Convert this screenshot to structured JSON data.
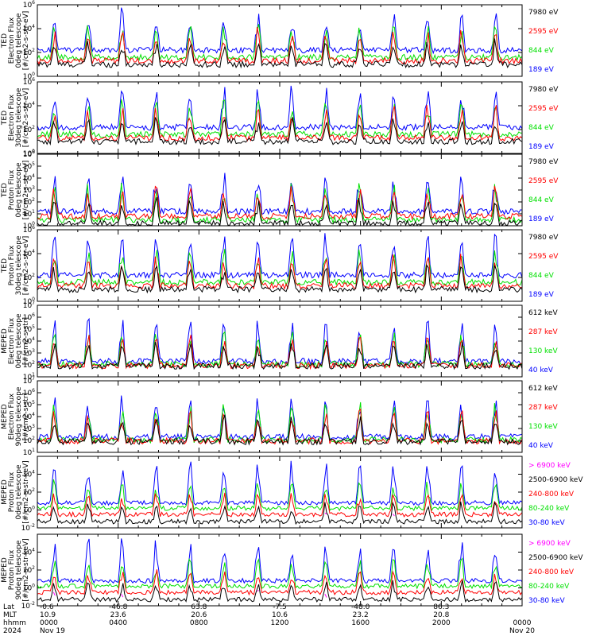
{
  "chart_data": [
    {
      "type": "line",
      "ylabel_lines": [
        "TED",
        "Electron Flux",
        "0deg telescope",
        "[#/cm2-s-str-eV]"
      ],
      "y_log_range": [
        0,
        6
      ],
      "y_ticks": [
        "10^0",
        "10^2",
        "10^4",
        "10^6"
      ],
      "series": [
        {
          "name": "7980 eV",
          "color": "#000000"
        },
        {
          "name": "2595 eV",
          "color": "#ff0000"
        },
        {
          "name": "844 eV",
          "color": "#00e000"
        },
        {
          "name": "189 eV",
          "color": "#0000ff"
        }
      ]
    },
    {
      "type": "line",
      "ylabel_lines": [
        "TED",
        "Electron Flux",
        "30deg telescope",
        "[#/cm2-s-str-eV]"
      ],
      "y_log_range": [
        0,
        6
      ],
      "y_ticks": [
        "10^0",
        "10^2",
        "10^4",
        "10^6"
      ],
      "series": [
        {
          "name": "7980 eV",
          "color": "#000000"
        },
        {
          "name": "2595 eV",
          "color": "#ff0000"
        },
        {
          "name": "844 eV",
          "color": "#00e000"
        },
        {
          "name": "189 eV",
          "color": "#0000ff"
        }
      ]
    },
    {
      "type": "line",
      "ylabel_lines": [
        "TED",
        "Proton Flux",
        "0deg telescope",
        "[#/cm2-s-str-eV]"
      ],
      "y_log_range": [
        0,
        6
      ],
      "y_ticks": [
        "10^0",
        "10^1",
        "10^2",
        "10^3",
        "10^4",
        "10^5",
        "10^6"
      ],
      "series": [
        {
          "name": "7980 eV",
          "color": "#000000"
        },
        {
          "name": "2595 eV",
          "color": "#ff0000"
        },
        {
          "name": "844 eV",
          "color": "#00e000"
        },
        {
          "name": "189 eV",
          "color": "#0000ff"
        }
      ]
    },
    {
      "type": "line",
      "ylabel_lines": [
        "TED",
        "Proton Flux",
        "30deg telescope",
        "[#/cm2-s-str-eV]"
      ],
      "y_log_range": [
        0,
        6
      ],
      "y_ticks": [
        "10^0",
        "10^2",
        "10^4",
        "10^6"
      ],
      "series": [
        {
          "name": "7980 eV",
          "color": "#000000"
        },
        {
          "name": "2595 eV",
          "color": "#ff0000"
        },
        {
          "name": "844 eV",
          "color": "#00e000"
        },
        {
          "name": "189 eV",
          "color": "#0000ff"
        }
      ]
    },
    {
      "type": "line",
      "ylabel_lines": [
        "MEPED",
        "Electron Flux",
        "0deg telescope",
        "[#/cm2-s-str]"
      ],
      "y_log_range": [
        1,
        7
      ],
      "y_ticks": [
        "10^1",
        "10^2",
        "10^3",
        "10^4",
        "10^5",
        "10^6",
        "10^7"
      ],
      "series": [
        {
          "name": "612 keV",
          "color": "#000000"
        },
        {
          "name": "287 keV",
          "color": "#ff0000"
        },
        {
          "name": "130 keV",
          "color": "#00e000"
        },
        {
          "name": "40 keV",
          "color": "#0000ff"
        }
      ]
    },
    {
      "type": "line",
      "ylabel_lines": [
        "MEPED",
        "Electron Flux",
        "90deg telescope",
        "[#/cm2-s-str]"
      ],
      "y_log_range": [
        1,
        7
      ],
      "y_ticks": [
        "10^1",
        "10^2",
        "10^3",
        "10^4",
        "10^5",
        "10^6",
        "10^7"
      ],
      "series": [
        {
          "name": "612 keV",
          "color": "#000000"
        },
        {
          "name": "287 keV",
          "color": "#ff0000"
        },
        {
          "name": "130 keV",
          "color": "#00e000"
        },
        {
          "name": "40 keV",
          "color": "#0000ff"
        }
      ]
    },
    {
      "type": "line",
      "ylabel_lines": [
        "MEPED",
        "Proton Flux",
        "0deg telescope",
        "[#/cm2-s-str-keV]"
      ],
      "y_log_range": [
        -2,
        6
      ],
      "y_ticks": [
        "10^-2",
        "10^0",
        "10^2",
        "10^4"
      ],
      "series": [
        {
          "name": "> 6900 keV",
          "color": "#ff00ff"
        },
        {
          "name": "2500-6900 keV",
          "color": "#000000"
        },
        {
          "name": "240-800 keV",
          "color": "#ff0000"
        },
        {
          "name": "80-240 keV",
          "color": "#00e000"
        },
        {
          "name": "30-80 keV",
          "color": "#0000ff"
        }
      ]
    },
    {
      "type": "line",
      "ylabel_lines": [
        "MEPED",
        "Proton Flux",
        "90deg telescope",
        "[#/cm2-s-str-keV]"
      ],
      "y_log_range": [
        -2,
        6
      ],
      "y_ticks": [
        "10^-2",
        "10^0",
        "10^2",
        "10^4"
      ],
      "series": [
        {
          "name": "> 6900 keV",
          "color": "#ff00ff"
        },
        {
          "name": "2500-6900 keV",
          "color": "#000000"
        },
        {
          "name": "240-800 keV",
          "color": "#ff0000"
        },
        {
          "name": "80-240 keV",
          "color": "#00e000"
        },
        {
          "name": "30-80 keV",
          "color": "#0000ff"
        }
      ]
    }
  ],
  "x_axis": {
    "row_labels": [
      "Lat",
      "MLT",
      "hhmm",
      "2024"
    ],
    "ticks": [
      {
        "lat": "-0.6",
        "mlt": "10.9",
        "hhmm": "0000",
        "extra": "Nov 19"
      },
      {
        "lat": "-46.8",
        "mlt": "23.6",
        "hhmm": "0400",
        "extra": ""
      },
      {
        "lat": "63.8",
        "mlt": "20.6",
        "hhmm": "0800",
        "extra": ""
      },
      {
        "lat": "-7.5",
        "mlt": "10.6",
        "hhmm": "1200",
        "extra": ""
      },
      {
        "lat": "-48.0",
        "mlt": "23.2",
        "hhmm": "1600",
        "extra": ""
      },
      {
        "lat": "86.3",
        "mlt": "20.8",
        "hhmm": "2000",
        "extra": ""
      },
      {
        "lat": "",
        "mlt": "",
        "hhmm": "0000",
        "extra": "Nov 20"
      }
    ]
  }
}
